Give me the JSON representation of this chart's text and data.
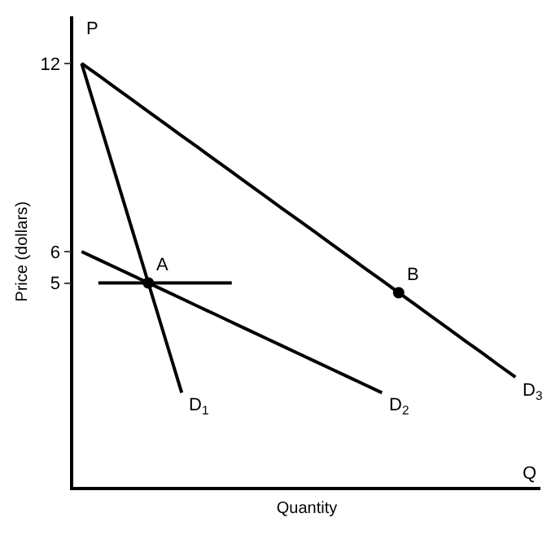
{
  "chart_data": {
    "type": "line",
    "xlabel": "Quantity",
    "ylabel": "Price (dollars)",
    "annotations": [
      "P",
      "Q"
    ],
    "categories": [
      null,
      null,
      null,
      null,
      null,
      null,
      null,
      null,
      null,
      null,
      null,
      null,
      null,
      null,
      null,
      null,
      null,
      null,
      null,
      null,
      null,
      null,
      null,
      null,
      null,
      null,
      null,
      null
    ],
    "series": [
      {
        "name": "D$_{1}$",
        "color": "#000000",
        "values": [
          12,
          10.25,
          8.5,
          6.75,
          5,
          3.25,
          1.5,
          null,
          null,
          null,
          null,
          null,
          null,
          null,
          null,
          null,
          null,
          null,
          null,
          null,
          null,
          null,
          null,
          null,
          null,
          null,
          null,
          null
        ]
      },
      {
        "name": "D$_{2}$",
        "color": "#000000",
        "values": [
          6,
          5.75,
          5.5,
          5.25,
          5,
          4.75,
          4.5,
          4.25,
          4,
          3.75,
          3.5,
          3.25,
          3,
          2.75,
          2.5,
          2.25,
          2,
          1.75,
          1.5,
          null,
          null,
          null,
          null,
          null,
          null,
          null,
          null,
          null
        ]
      },
      {
        "name": "D$_{3}$",
        "color": "#000000",
        "values": [
          12,
          11.62,
          11.23,
          10.85,
          10.46,
          10.08,
          9.69,
          9.31,
          8.92,
          8.54,
          8.15,
          7.77,
          7.38,
          7,
          6.62,
          6.23,
          5.85,
          5.46,
          5.08,
          4.69,
          4.31,
          3.92,
          3.54,
          3.15,
          2.77,
          2.38,
          2,
          null
        ]
      },
      {
        "color": "#000000",
        "values": [
          null,
          5,
          5,
          5,
          5,
          5,
          5,
          5,
          5,
          5,
          null,
          null,
          null,
          null,
          null,
          null,
          null,
          null,
          null,
          null,
          null,
          null,
          null,
          null,
          null,
          null,
          null,
          null
        ]
      },
      {
        "name": "A",
        "type": "scatter",
        "marker": "circle",
        "color": "#000000",
        "values": [
          null,
          null,
          null,
          null,
          5,
          null,
          null,
          null,
          null,
          null,
          null,
          null,
          null,
          null,
          null,
          null,
          null,
          null,
          null,
          null,
          null,
          null,
          null,
          null,
          null,
          null,
          null,
          null
        ]
      },
      {
        "name": "B",
        "type": "scatter",
        "marker": "circle",
        "color": "#000000",
        "values": [
          null,
          null,
          null,
          null,
          null,
          null,
          null,
          null,
          null,
          null,
          null,
          null,
          null,
          null,
          null,
          null,
          null,
          null,
          null,
          4.69,
          null,
          null,
          null,
          null,
          null,
          null,
          null,
          null
        ]
      }
    ],
    "ylim": [
      -1.5,
      13.5
    ],
    "yticks": [
      5,
      6,
      12
    ],
    "tick_labels": "y",
    "grid": false,
    "legend": false,
    "line_style": "solid"
  }
}
